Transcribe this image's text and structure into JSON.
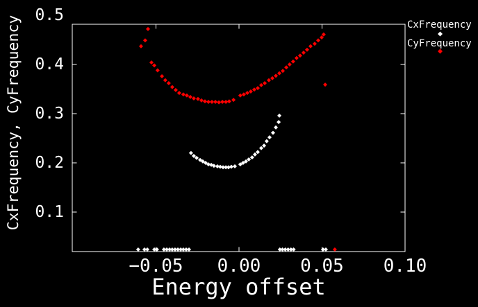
{
  "chart_data": {
    "type": "scatter",
    "title": "",
    "xlabel": "Energy offset",
    "ylabel": "CxFrequency, CyFrequency",
    "xlim": [
      -0.1004,
      0.1
    ],
    "ylim": [
      0.0197,
      0.4817
    ],
    "x_ticks": [
      -0.05,
      0.0,
      0.05,
      0.1
    ],
    "x_tick_labels": [
      "−0.05",
      "0.00",
      "0.05",
      "0.10"
    ],
    "y_ticks": [
      0.1,
      0.2,
      0.3,
      0.4,
      0.5
    ],
    "y_tick_labels": [
      "0.1",
      "0.2",
      "0.3",
      "0.4",
      "0.5"
    ],
    "grid": false,
    "legend_position": "outside-top-right",
    "marker": "filled-diamond",
    "background_color": "#000000",
    "axis_color": "#ffffff",
    "series": [
      {
        "name": "CxFrequency",
        "color": "#ffffff",
        "points": [
          [
            -0.0607,
            0.024
          ],
          [
            -0.0569,
            0.024
          ],
          [
            -0.0552,
            0.024
          ],
          [
            -0.051,
            0.024
          ],
          [
            -0.0494,
            0.024
          ],
          [
            -0.0452,
            0.024
          ],
          [
            -0.0435,
            0.024
          ],
          [
            -0.0418,
            0.024
          ],
          [
            -0.0402,
            0.024
          ],
          [
            -0.0385,
            0.024
          ],
          [
            -0.0368,
            0.024
          ],
          [
            -0.0351,
            0.024
          ],
          [
            -0.0335,
            0.024
          ],
          [
            -0.0318,
            0.024
          ],
          [
            -0.0301,
            0.024
          ],
          [
            -0.0289,
            0.22
          ],
          [
            -0.0272,
            0.214
          ],
          [
            -0.0255,
            0.21
          ],
          [
            -0.0234,
            0.206
          ],
          [
            -0.0218,
            0.203
          ],
          [
            -0.0201,
            0.2
          ],
          [
            -0.0184,
            0.197
          ],
          [
            -0.0167,
            0.196
          ],
          [
            -0.0151,
            0.194
          ],
          [
            -0.013,
            0.193
          ],
          [
            -0.0113,
            0.192
          ],
          [
            -0.0096,
            0.191
          ],
          [
            -0.0079,
            0.191
          ],
          [
            -0.0063,
            0.191
          ],
          [
            -0.0046,
            0.192
          ],
          [
            -0.0025,
            0.193
          ],
          [
            0.0008,
            0.197
          ],
          [
            0.0025,
            0.2
          ],
          [
            0.0042,
            0.203
          ],
          [
            0.0059,
            0.207
          ],
          [
            0.0079,
            0.211
          ],
          [
            0.0096,
            0.217
          ],
          [
            0.0113,
            0.222
          ],
          [
            0.0134,
            0.23
          ],
          [
            0.0151,
            0.235
          ],
          [
            0.0167,
            0.244
          ],
          [
            0.0184,
            0.252
          ],
          [
            0.0205,
            0.261
          ],
          [
            0.0222,
            0.272
          ],
          [
            0.0239,
            0.283
          ],
          [
            0.0243,
            0.296
          ],
          [
            0.0246,
            0.024
          ],
          [
            0.0262,
            0.024
          ],
          [
            0.0279,
            0.024
          ],
          [
            0.0296,
            0.024
          ],
          [
            0.0313,
            0.024
          ],
          [
            0.0329,
            0.024
          ],
          [
            0.0506,
            0.024
          ],
          [
            0.0523,
            0.024
          ]
        ]
      },
      {
        "name": "CyFrequency",
        "color": "#ff0000",
        "points": [
          [
            -0.059,
            0.437
          ],
          [
            -0.0565,
            0.449
          ],
          [
            -0.0548,
            0.472
          ],
          [
            -0.0527,
            0.404
          ],
          [
            -0.051,
            0.398
          ],
          [
            -0.049,
            0.388
          ],
          [
            -0.0464,
            0.376
          ],
          [
            -0.0444,
            0.368
          ],
          [
            -0.0423,
            0.362
          ],
          [
            -0.0402,
            0.354
          ],
          [
            -0.0381,
            0.348
          ],
          [
            -0.036,
            0.342
          ],
          [
            -0.0335,
            0.339
          ],
          [
            -0.0314,
            0.337
          ],
          [
            -0.0293,
            0.334
          ],
          [
            -0.0272,
            0.331
          ],
          [
            -0.0247,
            0.33
          ],
          [
            -0.0226,
            0.327
          ],
          [
            -0.0205,
            0.325
          ],
          [
            -0.0184,
            0.324
          ],
          [
            -0.0163,
            0.324
          ],
          [
            -0.0142,
            0.324
          ],
          [
            -0.0121,
            0.323
          ],
          [
            -0.01,
            0.324
          ],
          [
            -0.0079,
            0.324
          ],
          [
            -0.0059,
            0.325
          ],
          [
            -0.0033,
            0.328
          ],
          [
            0.0008,
            0.337
          ],
          [
            0.0029,
            0.339
          ],
          [
            0.005,
            0.342
          ],
          [
            0.0071,
            0.345
          ],
          [
            0.0092,
            0.349
          ],
          [
            0.0113,
            0.352
          ],
          [
            0.0134,
            0.358
          ],
          [
            0.0155,
            0.362
          ],
          [
            0.018,
            0.368
          ],
          [
            0.0201,
            0.372
          ],
          [
            0.0222,
            0.377
          ],
          [
            0.0243,
            0.382
          ],
          [
            0.0264,
            0.387
          ],
          [
            0.0285,
            0.394
          ],
          [
            0.0305,
            0.4
          ],
          [
            0.0326,
            0.406
          ],
          [
            0.0347,
            0.413
          ],
          [
            0.0368,
            0.418
          ],
          [
            0.0389,
            0.424
          ],
          [
            0.041,
            0.43
          ],
          [
            0.0431,
            0.437
          ],
          [
            0.0456,
            0.442
          ],
          [
            0.0477,
            0.449
          ],
          [
            0.0498,
            0.455
          ],
          [
            0.051,
            0.461
          ],
          [
            0.0519,
            0.359
          ],
          [
            0.0577,
            0.024
          ]
        ]
      }
    ]
  }
}
